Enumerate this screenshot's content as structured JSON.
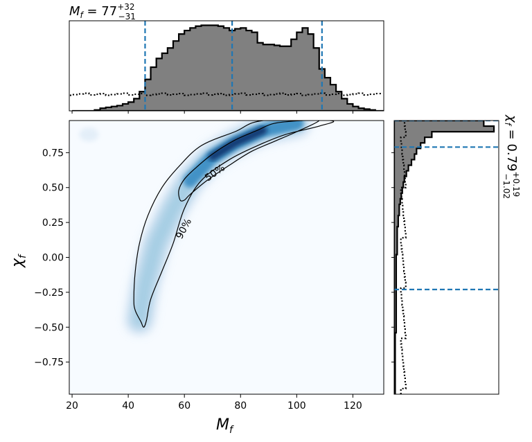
{
  "chart_data": [
    {
      "panel": "top-marginal",
      "type": "histogram",
      "title_main": "M",
      "title_sub": "f",
      "title_value": " = 77",
      "title_sup": "+32",
      "title_inf": "−31",
      "xlim": [
        19,
        131
      ],
      "dashed_lines_x": [
        46,
        77,
        109
      ],
      "bins_x_start": 20,
      "bin_width": 2.0,
      "posterior_heights": [
        0.0,
        0.0,
        0.0,
        0.0,
        0.01,
        0.03,
        0.04,
        0.05,
        0.06,
        0.08,
        0.1,
        0.14,
        0.22,
        0.36,
        0.5,
        0.6,
        0.66,
        0.72,
        0.8,
        0.88,
        0.92,
        0.95,
        0.97,
        0.98,
        0.98,
        0.98,
        0.97,
        0.95,
        0.92,
        0.94,
        0.95,
        0.92,
        0.9,
        0.78,
        0.76,
        0.76,
        0.75,
        0.74,
        0.74,
        0.82,
        0.9,
        0.95,
        0.88,
        0.72,
        0.48,
        0.38,
        0.3,
        0.22,
        0.14,
        0.08,
        0.05,
        0.03,
        0.02,
        0.01,
        0.0,
        0.0
      ],
      "prior_level": 0.19
    },
    {
      "panel": "joint",
      "type": "heatmap",
      "xlabel": "M",
      "xlabel_sub": "f",
      "ylabel": "χ",
      "ylabel_sub": "f",
      "xlim": [
        19,
        131
      ],
      "ylim": [
        -0.98,
        0.98
      ],
      "xticks": [
        20,
        40,
        60,
        80,
        100,
        120
      ],
      "yticks": [
        -0.75,
        -0.5,
        -0.25,
        0.0,
        0.25,
        0.5,
        0.75
      ],
      "yticklabels": [
        "−0.75",
        "−0.50",
        "−0.25",
        "0.00",
        "0.25",
        "0.50",
        "0.75"
      ],
      "colormap": "Blues",
      "contour_labels": [
        "50%",
        "90%"
      ],
      "contour_90": [
        [
          45.5,
          -0.5
        ],
        [
          44.5,
          -0.46
        ],
        [
          42.5,
          -0.38
        ],
        [
          42,
          -0.3
        ],
        [
          42.5,
          -0.1
        ],
        [
          44,
          0.1
        ],
        [
          47,
          0.3
        ],
        [
          52,
          0.5
        ],
        [
          58,
          0.65
        ],
        [
          66,
          0.8
        ],
        [
          78,
          0.9
        ],
        [
          88,
          0.98
        ],
        [
          112,
          0.98
        ],
        [
          108,
          0.94
        ],
        [
          96,
          0.88
        ],
        [
          86,
          0.8
        ],
        [
          76,
          0.7
        ],
        [
          66,
          0.55
        ],
        [
          60,
          0.35
        ],
        [
          56,
          0.1
        ],
        [
          52,
          -0.1
        ],
        [
          48,
          -0.3
        ],
        [
          46.5,
          -0.45
        ]
      ],
      "contour_50": [
        [
          58.5,
          0.41
        ],
        [
          58,
          0.48
        ],
        [
          60,
          0.56
        ],
        [
          64,
          0.64
        ],
        [
          70,
          0.74
        ],
        [
          78,
          0.84
        ],
        [
          86,
          0.91
        ],
        [
          92,
          0.96
        ],
        [
          102,
          0.98
        ],
        [
          108,
          0.98
        ],
        [
          100,
          0.9
        ],
        [
          92,
          0.83
        ],
        [
          84,
          0.76
        ],
        [
          76,
          0.66
        ],
        [
          68,
          0.55
        ],
        [
          62,
          0.45
        ],
        [
          60,
          0.41
        ]
      ],
      "density_ridge": [
        [
          44,
          -0.45
        ],
        [
          46,
          -0.2
        ],
        [
          50,
          0.1
        ],
        [
          56,
          0.35
        ],
        [
          62,
          0.55
        ],
        [
          70,
          0.72
        ],
        [
          78,
          0.82
        ],
        [
          88,
          0.91
        ],
        [
          100,
          0.96
        ]
      ]
    },
    {
      "panel": "right-marginal",
      "type": "histogram",
      "orientation": "horizontal",
      "title_main": "χ",
      "title_sub": "f",
      "title_value": " = 0.79",
      "title_sup": "+0.19",
      "title_inf": "−1.02",
      "ylim": [
        -0.98,
        0.98
      ],
      "dashed_lines_y": [
        -0.23,
        0.79,
        0.98
      ],
      "bins_y_start": -0.98,
      "bin_width": 0.04,
      "posterior_widths": [
        0.01,
        0.01,
        0.01,
        0.01,
        0.01,
        0.01,
        0.01,
        0.01,
        0.01,
        0.01,
        0.01,
        0.02,
        0.02,
        0.02,
        0.02,
        0.02,
        0.02,
        0.02,
        0.02,
        0.02,
        0.02,
        0.02,
        0.02,
        0.02,
        0.02,
        0.03,
        0.03,
        0.03,
        0.03,
        0.03,
        0.04,
        0.04,
        0.05,
        0.05,
        0.06,
        0.07,
        0.08,
        0.09,
        0.1,
        0.12,
        0.14,
        0.17,
        0.2,
        0.22,
        0.26,
        0.3,
        0.37,
        0.98,
        0.88
      ],
      "prior_level": 0.09
    }
  ]
}
